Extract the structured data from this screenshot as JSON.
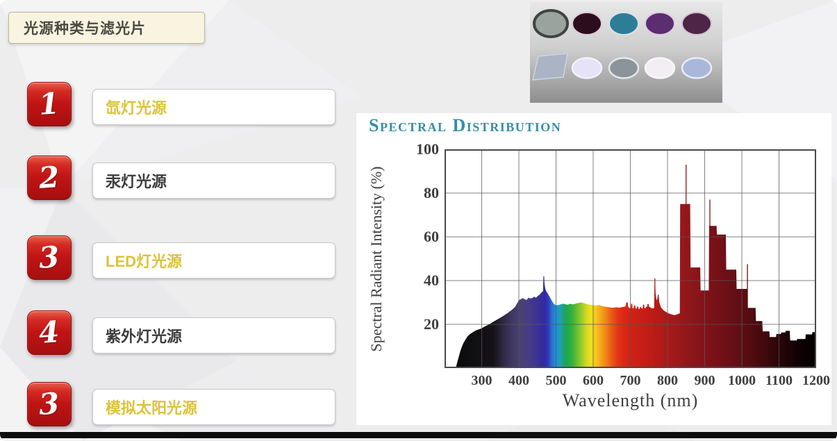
{
  "slide": {
    "title": "光源种类与滤光片",
    "items": [
      {
        "num": "1",
        "label": "氙灯光源",
        "style": "yellow"
      },
      {
        "num": "2",
        "label": "汞灯光源",
        "style": "dark"
      },
      {
        "num": "3",
        "label": "LED灯光源",
        "style": "yellow"
      },
      {
        "num": "4",
        "label": "紫外灯光源",
        "style": "dark"
      },
      {
        "num": "3",
        "label": "模拟太阳光源",
        "style": "yellow"
      }
    ],
    "colors": {
      "badge_red": "#c01414",
      "label_yellow": "#dcc337",
      "label_dark": "#3d3d3d",
      "title_box_bg": "#f8f4e0",
      "background": "#ededee"
    }
  },
  "filters_panel": {
    "description": "photo of optical filters, two rows",
    "bg_top": "#e7e7e7",
    "bg_bottom": "#8e8e8e",
    "row1": [
      {
        "type": "circle",
        "fill": "#9aa39e",
        "ring": "#3f4442"
      },
      {
        "type": "circle",
        "fill": "#2c0d1e",
        "ring": "#d9cdd9"
      },
      {
        "type": "circle",
        "fill": "#2e7d96",
        "ring": "#dbe2e6"
      },
      {
        "type": "circle",
        "fill": "#5c2d70",
        "ring": "#d9cde2"
      },
      {
        "type": "circle",
        "fill": "#4e2547",
        "ring": "#d2c6d2"
      }
    ],
    "row2": [
      {
        "type": "plate",
        "fill": "#aab4c4",
        "ring": "#cdd5e0"
      },
      {
        "type": "circle",
        "fill": "#e6e2f8",
        "ring": "#f5f1fc"
      },
      {
        "type": "circle",
        "fill": "#8a949a",
        "ring": "#e5e9eb"
      },
      {
        "type": "circle",
        "fill": "#f2eef4",
        "ring": "#fbf8fb"
      },
      {
        "type": "circle",
        "fill": "#a9b8da",
        "ring": "#e9edf7"
      }
    ]
  },
  "chart_data": {
    "type": "area",
    "title": "Spectral Distribution",
    "xlabel": "Wavelength (nm)",
    "ylabel": "Spectral Radiant Intensity (%)",
    "xlim": [
      200,
      1200
    ],
    "ylim": [
      0,
      100
    ],
    "x_ticks": [
      300,
      400,
      500,
      600,
      700,
      800,
      900,
      1000,
      1100,
      1200
    ],
    "y_ticks": [
      20,
      40,
      60,
      80,
      100
    ],
    "grid": true,
    "title_color": "#338fa6",
    "profile": [
      [
        230,
        0
      ],
      [
        234,
        2.5
      ],
      [
        238,
        5
      ],
      [
        242,
        7.5
      ],
      [
        246,
        9.5
      ],
      [
        251,
        11.5
      ],
      [
        256,
        13
      ],
      [
        262,
        14.5
      ],
      [
        268,
        15.5
      ],
      [
        275,
        16.3
      ],
      [
        282,
        17
      ],
      [
        290,
        17.6
      ],
      [
        298,
        18
      ],
      [
        306,
        18.8
      ],
      [
        314,
        19.5
      ],
      [
        322,
        20.2
      ],
      [
        330,
        21
      ],
      [
        338,
        21.8
      ],
      [
        346,
        22.6
      ],
      [
        354,
        23.4
      ],
      [
        362,
        24.3
      ],
      [
        370,
        25.2
      ],
      [
        378,
        26.2
      ],
      [
        384,
        27
      ],
      [
        390,
        28
      ],
      [
        395,
        29.5
      ],
      [
        400,
        31
      ],
      [
        406,
        31.6
      ],
      [
        411,
        32
      ],
      [
        416,
        31.4
      ],
      [
        421,
        31.2
      ],
      [
        426,
        32.2
      ],
      [
        431,
        31.8
      ],
      [
        436,
        32
      ],
      [
        441,
        32.6
      ],
      [
        446,
        32.2
      ],
      [
        451,
        33
      ],
      [
        456,
        33.6
      ],
      [
        460,
        34.4
      ],
      [
        463,
        35
      ],
      [
        465,
        35
      ],
      [
        466,
        42
      ],
      [
        468,
        42
      ],
      [
        469,
        38.5
      ],
      [
        471,
        36.3
      ],
      [
        474,
        35
      ],
      [
        478,
        34
      ],
      [
        482,
        32.8
      ],
      [
        486,
        31.6
      ],
      [
        490,
        30.4
      ],
      [
        494,
        29.4
      ],
      [
        498,
        28.9
      ],
      [
        503,
        28.7
      ],
      [
        508,
        28.9
      ],
      [
        514,
        29.2
      ],
      [
        520,
        29.4
      ],
      [
        526,
        29.1
      ],
      [
        532,
        29
      ],
      [
        538,
        29.4
      ],
      [
        544,
        29.1
      ],
      [
        550,
        29.3
      ],
      [
        556,
        29.6
      ],
      [
        562,
        29.8
      ],
      [
        568,
        30
      ],
      [
        574,
        29.7
      ],
      [
        580,
        29.4
      ],
      [
        586,
        29.1
      ],
      [
        592,
        29
      ],
      [
        598,
        28.8
      ],
      [
        604,
        28.7
      ],
      [
        610,
        28.6
      ],
      [
        616,
        28.9
      ],
      [
        622,
        28.4
      ],
      [
        628,
        28.2
      ],
      [
        634,
        28
      ],
      [
        640,
        27.9
      ],
      [
        646,
        27.7
      ],
      [
        652,
        27.6
      ],
      [
        658,
        27.7
      ],
      [
        664,
        27.8
      ],
      [
        670,
        27.6
      ],
      [
        676,
        27.8
      ],
      [
        682,
        28
      ],
      [
        687,
        28.2
      ],
      [
        689,
        30
      ],
      [
        693,
        30
      ],
      [
        694,
        28
      ],
      [
        698,
        27.4
      ],
      [
        701,
        27.4
      ],
      [
        702,
        29.4
      ],
      [
        705,
        29.4
      ],
      [
        706,
        27.4
      ],
      [
        709,
        27.4
      ],
      [
        710,
        28.7
      ],
      [
        713,
        28.7
      ],
      [
        714,
        27.2
      ],
      [
        717,
        27.2
      ],
      [
        718,
        28.1
      ],
      [
        721,
        28.1
      ],
      [
        722,
        27.1
      ],
      [
        725,
        27.1
      ],
      [
        726,
        27.9
      ],
      [
        729,
        27.9
      ],
      [
        730,
        27.2
      ],
      [
        733,
        27.2
      ],
      [
        734,
        29
      ],
      [
        737,
        29
      ],
      [
        738,
        27.4
      ],
      [
        741,
        27.4
      ],
      [
        742,
        28
      ],
      [
        745,
        28
      ],
      [
        746,
        29.3
      ],
      [
        749,
        29.3
      ],
      [
        750,
        28.2
      ],
      [
        754,
        27.7
      ],
      [
        758,
        27.3
      ],
      [
        762,
        27.3
      ],
      [
        764,
        27.6
      ],
      [
        765,
        38
      ],
      [
        767,
        38
      ],
      [
        768,
        34
      ],
      [
        770,
        31.5
      ],
      [
        772,
        31
      ],
      [
        774,
        33.6
      ],
      [
        776,
        33.6
      ],
      [
        778,
        30
      ],
      [
        780,
        29
      ],
      [
        783,
        27.6
      ],
      [
        786,
        27
      ],
      [
        790,
        26.3
      ],
      [
        795,
        25.8
      ],
      [
        800,
        25.2
      ],
      [
        806,
        24.8
      ],
      [
        812,
        24.5
      ],
      [
        818,
        24.2
      ],
      [
        824,
        24.4
      ],
      [
        829,
        24.8
      ],
      [
        833,
        25
      ],
      [
        834,
        75
      ],
      [
        861,
        75
      ],
      [
        862,
        46
      ],
      [
        888,
        46
      ],
      [
        889,
        35.5
      ],
      [
        911,
        35.5
      ],
      [
        912,
        65
      ],
      [
        932,
        65
      ],
      [
        933,
        61
      ],
      [
        957,
        61
      ],
      [
        958,
        45
      ],
      [
        985,
        45
      ],
      [
        986,
        36.2
      ],
      [
        1015,
        36.2
      ],
      [
        1016,
        27.5
      ],
      [
        1037,
        27.5
      ],
      [
        1038,
        21.5
      ],
      [
        1055,
        21.5
      ],
      [
        1056,
        16.8
      ],
      [
        1074,
        16.8
      ],
      [
        1075,
        14.2
      ],
      [
        1092,
        14.2
      ],
      [
        1093,
        15.6
      ],
      [
        1105,
        15.6
      ],
      [
        1106,
        16.3
      ],
      [
        1117,
        16.3
      ],
      [
        1118,
        17
      ],
      [
        1129,
        17
      ],
      [
        1130,
        12.6
      ],
      [
        1148,
        12.6
      ],
      [
        1149,
        13.3
      ],
      [
        1171,
        13.3
      ],
      [
        1172,
        15.4
      ],
      [
        1189,
        15.4
      ],
      [
        1190,
        16.4
      ],
      [
        1200,
        16.4
      ]
    ],
    "spike_lines": [
      [
        766,
        41,
        "#b81b17"
      ],
      [
        850,
        93,
        "#8f161b"
      ],
      [
        914,
        77,
        "#7a1219"
      ],
      [
        1015,
        47.5,
        "#5c0d14"
      ]
    ],
    "spectrum_stops": [
      [
        200,
        "#0b0b0b"
      ],
      [
        305,
        "#151318"
      ],
      [
        330,
        "#2e2740"
      ],
      [
        355,
        "#3f3760"
      ],
      [
        380,
        "#4a4173"
      ],
      [
        400,
        "#473d85"
      ],
      [
        420,
        "#40358f"
      ],
      [
        435,
        "#382d9b"
      ],
      [
        448,
        "#3129a8"
      ],
      [
        458,
        "#2f3fba"
      ],
      [
        466,
        "#2a70d0"
      ],
      [
        478,
        "#2190d6"
      ],
      [
        490,
        "#1da0bb"
      ],
      [
        500,
        "#1ea36b"
      ],
      [
        510,
        "#20a74b"
      ],
      [
        524,
        "#3bb23a"
      ],
      [
        538,
        "#6fc030"
      ],
      [
        552,
        "#a5cf29"
      ],
      [
        564,
        "#d8da22"
      ],
      [
        576,
        "#f2df1e"
      ],
      [
        590,
        "#f6c41c"
      ],
      [
        604,
        "#f6a01a"
      ],
      [
        618,
        "#f08119"
      ],
      [
        632,
        "#ea5b17"
      ],
      [
        648,
        "#e23a16"
      ],
      [
        665,
        "#db2815"
      ],
      [
        690,
        "#d22115"
      ],
      [
        720,
        "#c61e16"
      ],
      [
        755,
        "#b81b17"
      ],
      [
        790,
        "#a81a19"
      ],
      [
        830,
        "#97181b"
      ],
      [
        870,
        "#88151a"
      ],
      [
        910,
        "#7b1219"
      ],
      [
        950,
        "#6d1017"
      ],
      [
        990,
        "#5f0e14"
      ],
      [
        1030,
        "#4d0b10"
      ],
      [
        1070,
        "#39080c"
      ],
      [
        1110,
        "#230507"
      ],
      [
        1150,
        "#100204"
      ],
      [
        1200,
        "#050000"
      ]
    ]
  }
}
